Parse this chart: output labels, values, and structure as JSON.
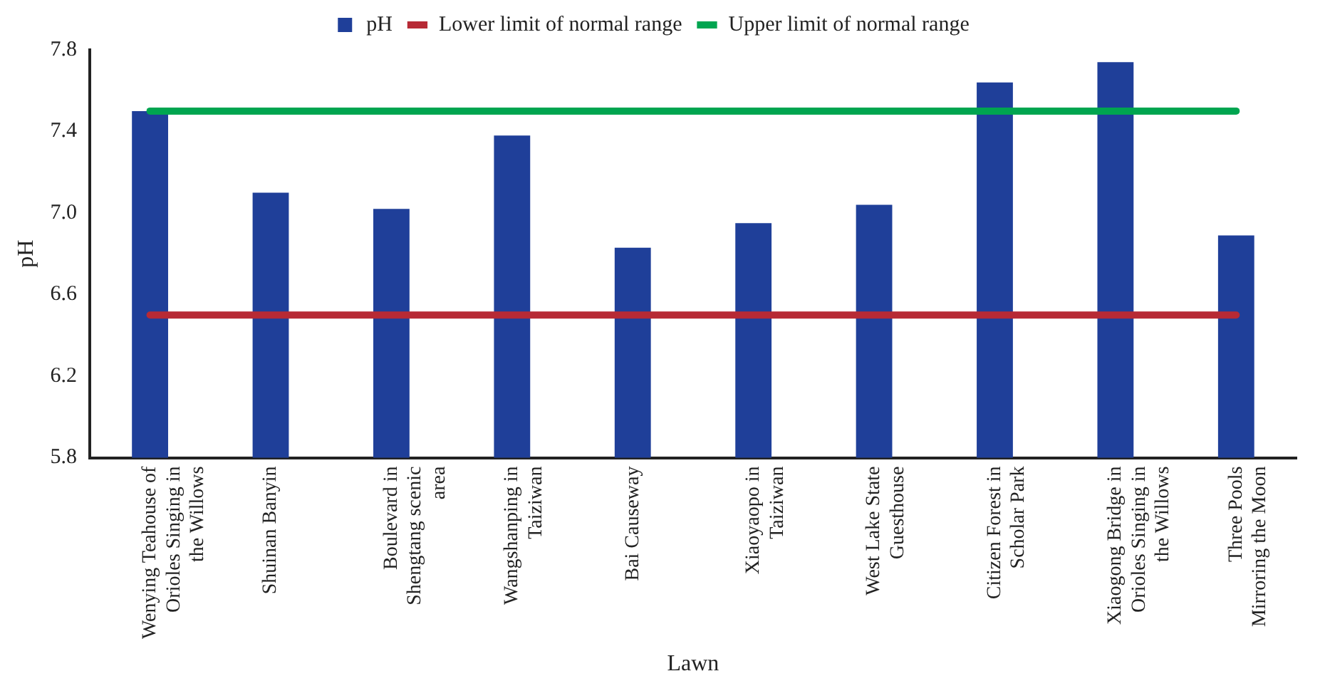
{
  "chart_data": {
    "type": "bar",
    "xlabel": "Lawn",
    "ylabel": "pH",
    "categories": [
      "Wenying Teahouse of Orioles Singing in the Willows",
      "Shuinan Banyin",
      "Boulevard in Shengtang scenic area",
      "Wangshanping in Taiziwan",
      "Bai Causeway",
      "Xiaoyaopo in Taiziwan",
      "West Lake State Guesthouse",
      "Citizen Forest in Scholar Park",
      "Xiaogong Bridge in Orioles Singing in the Willows",
      "Three Pools Mirroring the Moon"
    ],
    "series": [
      {
        "name": "pH",
        "color": "#1f3f99",
        "values": [
          7.5,
          7.1,
          7.02,
          7.38,
          6.83,
          6.95,
          7.04,
          7.64,
          7.74,
          6.89
        ]
      },
      {
        "name": "Lower limit of normal range",
        "type": "line",
        "color": "#b72a35",
        "values": [
          6.5,
          6.5,
          6.5,
          6.5,
          6.5,
          6.5,
          6.5,
          6.5,
          6.5,
          6.5
        ]
      },
      {
        "name": "Upper limit of normal range",
        "type": "line",
        "color": "#00a550",
        "values": [
          7.5,
          7.5,
          7.5,
          7.5,
          7.5,
          7.5,
          7.5,
          7.5,
          7.5,
          7.5
        ]
      }
    ],
    "ylim": [
      5.8,
      7.8
    ],
    "yticks": [
      5.8,
      6.2,
      6.6,
      {
        "value": 7,
        "label": "7.0"
      },
      7.4,
      7.8
    ],
    "grid": false,
    "legend": "top",
    "marker": "none"
  }
}
